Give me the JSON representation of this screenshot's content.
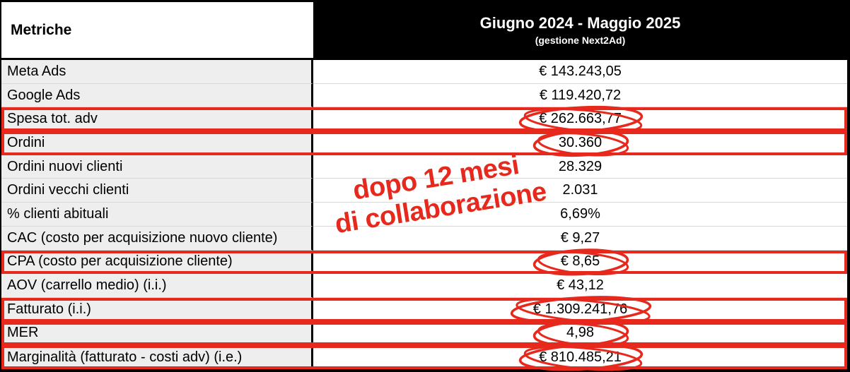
{
  "header": {
    "metrics_label": "Metriche",
    "period_title": "Giugno 2024 - Maggio 2025",
    "period_subtitle": "(gestione Next2Ad)"
  },
  "annotation": {
    "line1": "dopo 12 mesi",
    "line2": "di collaborazione"
  },
  "rows": [
    {
      "label": "Meta Ads",
      "value": "€ 143.243,05",
      "highlighted": false,
      "circled": false
    },
    {
      "label": "Google Ads",
      "value": "€ 119.420,72",
      "highlighted": false,
      "circled": false
    },
    {
      "label": "Spesa tot. adv",
      "value": "€ 262.663,77",
      "highlighted": true,
      "circled": true
    },
    {
      "label": "Ordini",
      "value": "30.360",
      "highlighted": true,
      "circled": true
    },
    {
      "label": "Ordini nuovi clienti",
      "value": "28.329",
      "highlighted": false,
      "circled": false
    },
    {
      "label": "Ordini vecchi clienti",
      "value": "2.031",
      "highlighted": false,
      "circled": false
    },
    {
      "label": "% clienti abituali",
      "value": "6,69%",
      "highlighted": false,
      "circled": false
    },
    {
      "label": "CAC (costo per acquisizione nuovo cliente)",
      "value": "€ 9,27",
      "highlighted": false,
      "circled": false
    },
    {
      "label": "CPA (costo per acquisizione cliente)",
      "value": "€ 8,65",
      "highlighted": true,
      "circled": true
    },
    {
      "label": "AOV (carrello medio) (i.i.)",
      "value": "€ 43,12",
      "highlighted": false,
      "circled": false
    },
    {
      "label": "Fatturato (i.i.)",
      "value": "€ 1.309.241,76",
      "highlighted": true,
      "circled": true
    },
    {
      "label": "MER",
      "value": "4,98",
      "highlighted": true,
      "circled": true
    },
    {
      "label": "Marginalità (fatturato - costi adv) (i.e.)",
      "value": "€ 810.485,21",
      "highlighted": true,
      "circled": true
    }
  ],
  "colors": {
    "annotation_red": "#e7281c",
    "header_bg": "#000000",
    "header_text": "#ffffff",
    "label_cell_bg": "#eeeeee",
    "row_separator": "#d8d8d8",
    "table_border": "#000000"
  }
}
